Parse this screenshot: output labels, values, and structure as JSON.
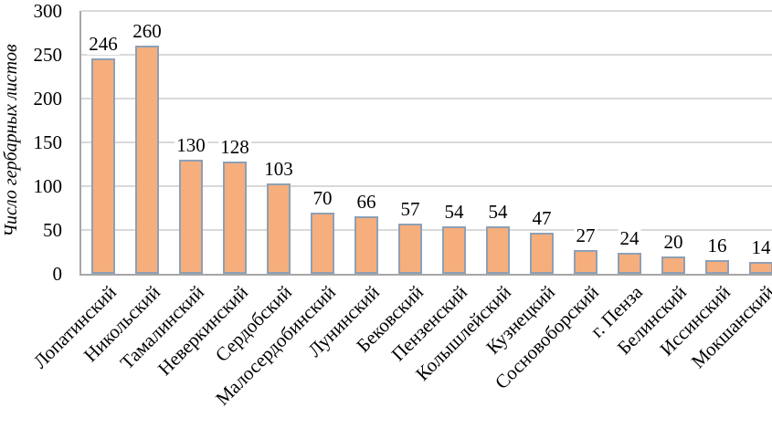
{
  "chart_data": {
    "type": "bar",
    "title": "",
    "xlabel": "",
    "ylabel": "Число гербарных листов",
    "ylim": [
      0,
      300
    ],
    "yticks": [
      0,
      50,
      100,
      150,
      200,
      250,
      300
    ],
    "grid": true,
    "data_labels": true,
    "legend": "none",
    "categories": [
      "Лопатинский",
      "Никольский",
      "Тамалинский",
      "Неверкинский",
      "Сердобский",
      "Малосердобинский",
      "Лунинский",
      "Бековский",
      "Пензенский",
      "Колышлейский",
      "Кузнецкий",
      "Сосновоборский",
      "г. Пенза",
      "Белинский",
      "Иссинский",
      "Мокшанский"
    ],
    "values": [
      246,
      260,
      130,
      128,
      103,
      70,
      66,
      57,
      54,
      54,
      47,
      27,
      24,
      20,
      16,
      14
    ],
    "colors": {
      "bar_fill": "#f6ae7d",
      "bar_border": "#8ea0b4",
      "gridline": "#d9d9d9",
      "axis_line": "#a6a6a6",
      "text": "#000000",
      "background": "#ffffff"
    }
  }
}
